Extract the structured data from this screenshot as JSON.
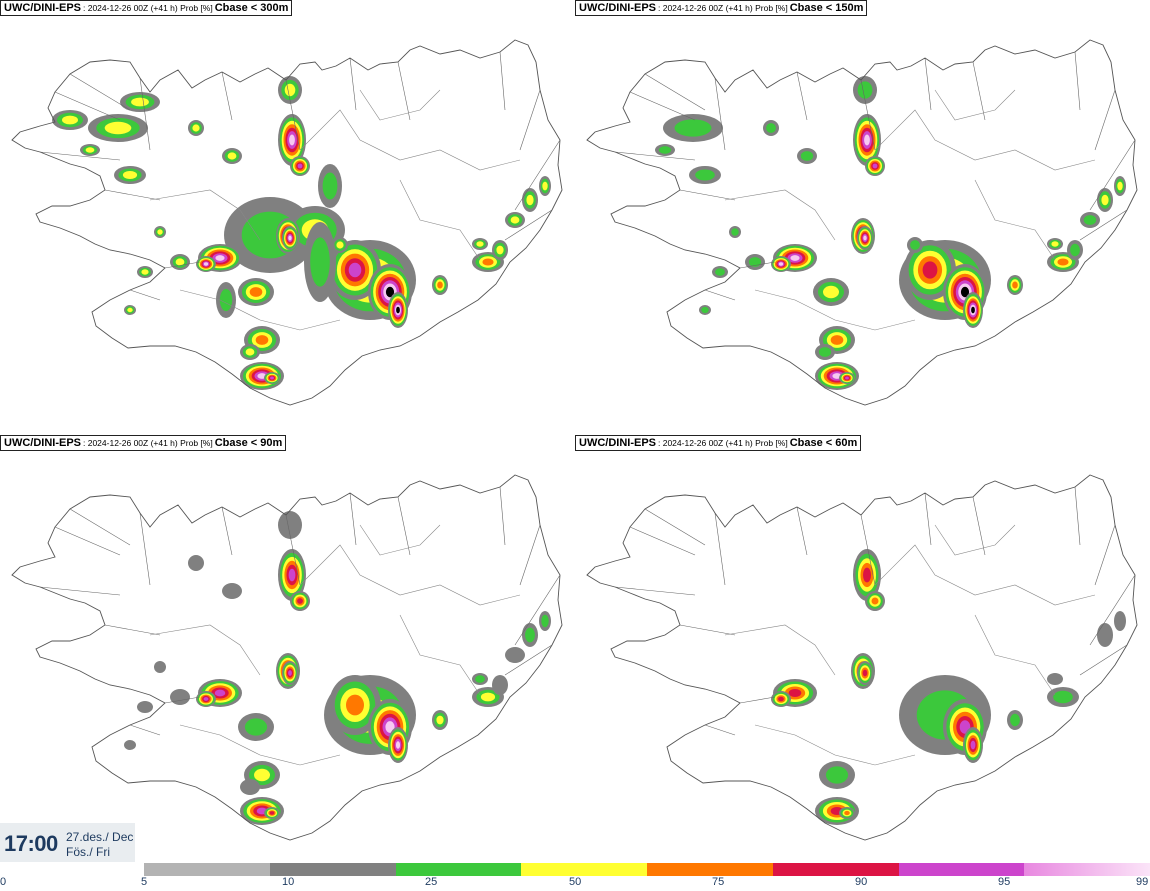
{
  "panels": [
    {
      "model": "UWC/DINI-EPS",
      "meta": ": 2024-12-26 00Z (+41 h) Prob [%]",
      "field": "Cbase < 300m",
      "level": 4
    },
    {
      "model": "UWC/DINI-EPS",
      "meta": ": 2024-12-26 00Z (+41 h) Prob [%]",
      "field": "Cbase < 150m",
      "level": 3
    },
    {
      "model": "UWC/DINI-EPS",
      "meta": ": 2024-12-26 00Z (+41 h) Prob [%]",
      "field": "Cbase < 90m",
      "level": 2
    },
    {
      "model": "UWC/DINI-EPS",
      "meta": ": 2024-12-26 00Z (+41 h) Prob [%]",
      "field": "Cbase < 60m",
      "level": 1
    }
  ],
  "valid_time": {
    "time": "17:00",
    "date_line1": "27.des./ Dec",
    "date_line2": "Fös./ Fri"
  },
  "legend": {
    "ticks": [
      "0",
      "5",
      "10",
      "25",
      "50",
      "75",
      "90",
      "95",
      "99"
    ],
    "colors": [
      "#b3b3b3",
      "#808080",
      "#3cc83c",
      "#ffff32",
      "#ff7800",
      "#dc1444",
      "#cc44cc",
      "#f7c9f2"
    ]
  }
}
